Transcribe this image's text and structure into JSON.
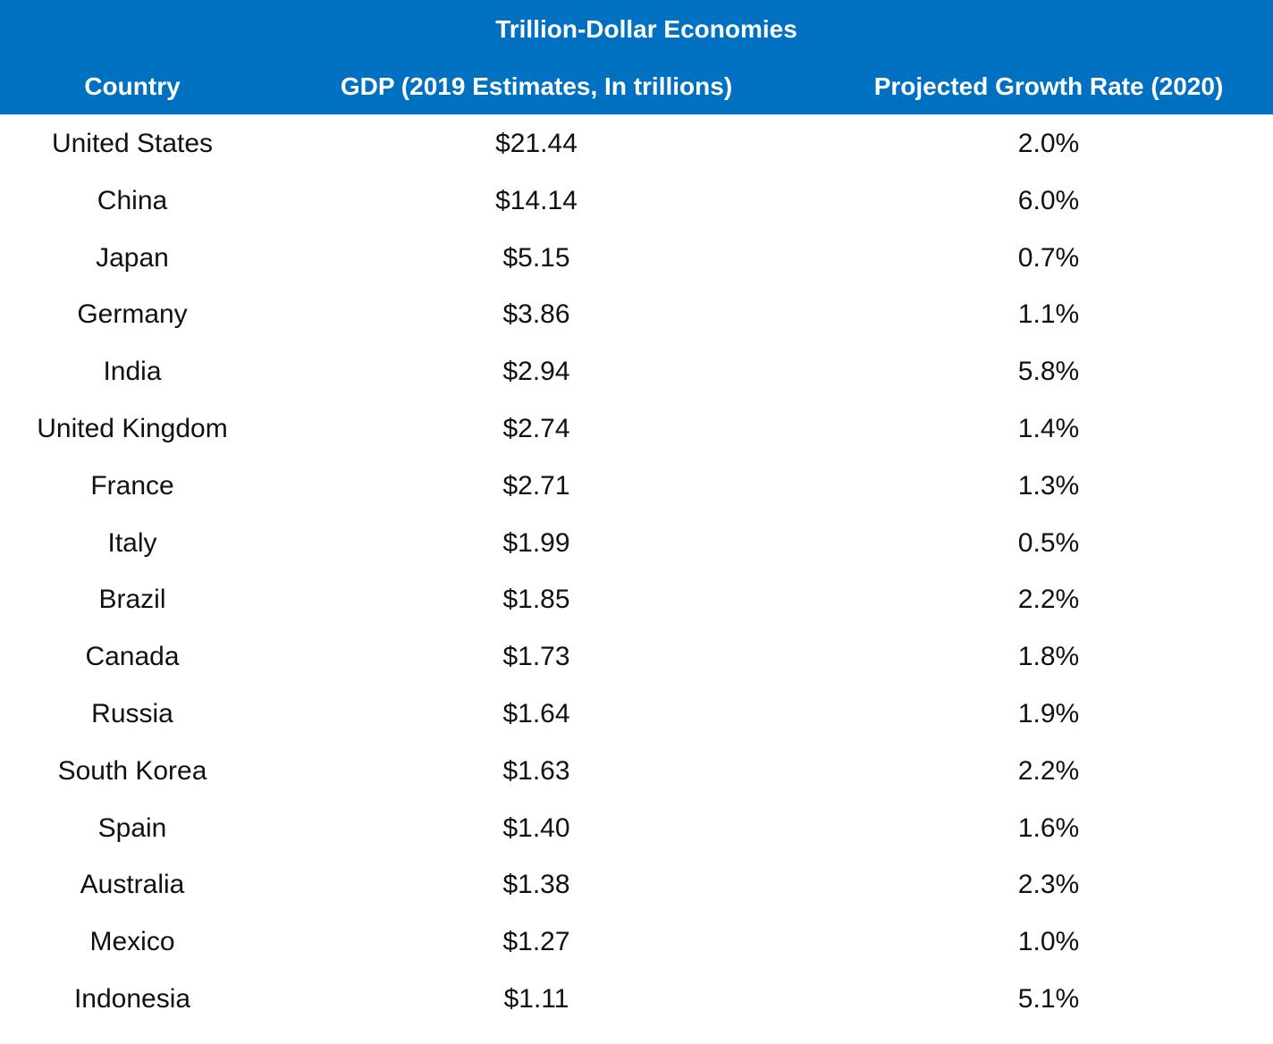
{
  "table": {
    "title": "Trillion-Dollar Economies",
    "columns": [
      "Country",
      "GDP (2019 Estimates, In trillions)",
      "Projected Growth Rate (2020)"
    ],
    "rows": [
      [
        "United States",
        "$21.44",
        "2.0%"
      ],
      [
        "China",
        "$14.14",
        "6.0%"
      ],
      [
        "Japan",
        "$5.15",
        "0.7%"
      ],
      [
        "Germany",
        "$3.86",
        "1.1%"
      ],
      [
        "India",
        "$2.94",
        "5.8%"
      ],
      [
        "United Kingdom",
        "$2.74",
        "1.4%"
      ],
      [
        "France",
        "$2.71",
        "1.3%"
      ],
      [
        "Italy",
        "$1.99",
        "0.5%"
      ],
      [
        "Brazil",
        "$1.85",
        "2.2%"
      ],
      [
        "Canada",
        "$1.73",
        "1.8%"
      ],
      [
        "Russia",
        "$1.64",
        "1.9%"
      ],
      [
        "South Korea",
        "$1.63",
        "2.2%"
      ],
      [
        "Spain",
        "$1.40",
        "1.6%"
      ],
      [
        "Australia",
        "$1.38",
        "2.3%"
      ],
      [
        "Mexico",
        "$1.27",
        "1.0%"
      ],
      [
        "Indonesia",
        "$1.11",
        "5.1%"
      ]
    ]
  }
}
